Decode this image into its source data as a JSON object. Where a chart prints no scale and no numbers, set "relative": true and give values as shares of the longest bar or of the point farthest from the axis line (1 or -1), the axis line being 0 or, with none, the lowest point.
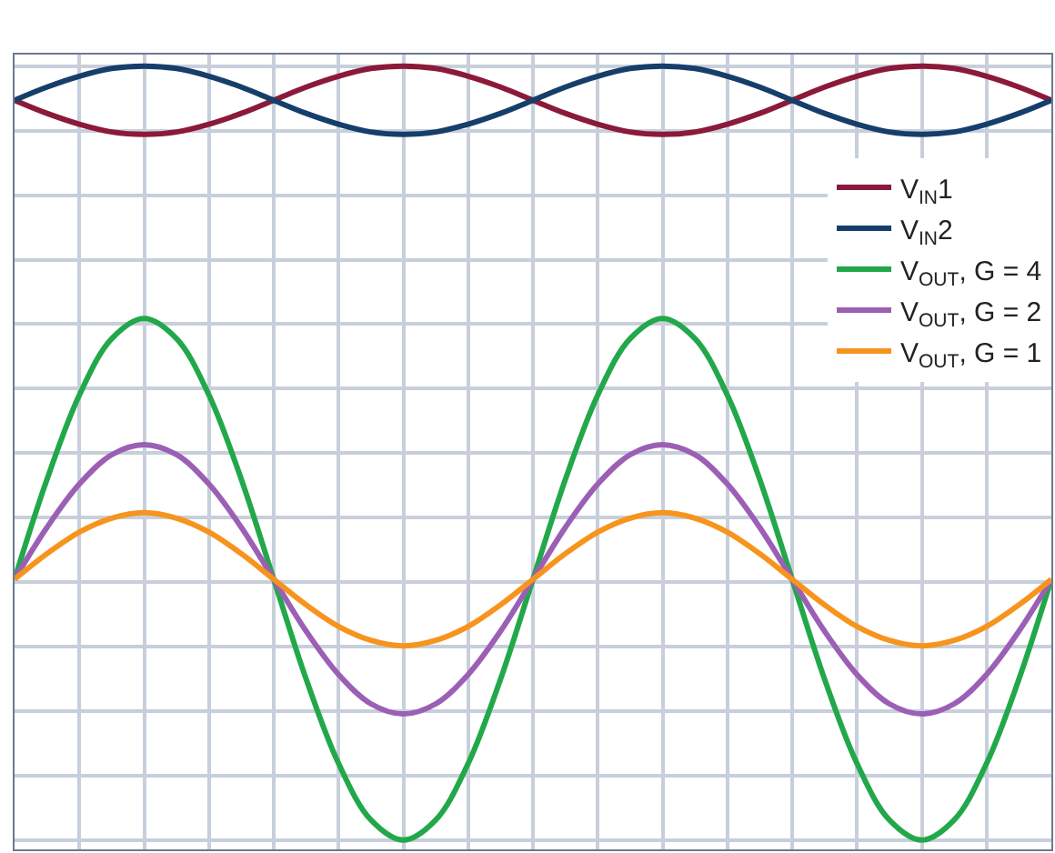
{
  "chart_data": {
    "type": "line",
    "relative": true,
    "grid": true,
    "legend": "top right",
    "marker": "none",
    "line_style": "solid",
    "categories": [
      null,
      null,
      null,
      null,
      null,
      null,
      null,
      null,
      null,
      null,
      null,
      null,
      null,
      null,
      null,
      null,
      null,
      null,
      null,
      null,
      null,
      null,
      null,
      null,
      null,
      null,
      null,
      null,
      null,
      null,
      null,
      null,
      null
    ],
    "series": [
      {
        "name": "V$_{IN}$1",
        "color": "#8b1a3a",
        "values": [
          0.956,
          0.939,
          0.925,
          0.915,
          0.912,
          0.915,
          0.925,
          0.939,
          0.956,
          0.973,
          0.987,
          0.997,
          1,
          0.997,
          0.987,
          0.973,
          0.956,
          0.939,
          0.925,
          0.915,
          0.912,
          0.915,
          0.925,
          0.939,
          0.956,
          0.973,
          0.987,
          0.997,
          1,
          0.997,
          0.987,
          0.973,
          0.956
        ]
      },
      {
        "name": "V$_{IN}$2",
        "color": "#163e6a",
        "values": [
          0.956,
          0.973,
          0.987,
          0.997,
          1,
          0.997,
          0.987,
          0.973,
          0.956,
          0.939,
          0.925,
          0.915,
          0.912,
          0.915,
          0.925,
          0.939,
          0.956,
          0.973,
          0.987,
          0.997,
          1,
          0.997,
          0.987,
          0.973,
          0.956,
          0.939,
          0.925,
          0.915,
          0.912,
          0.915,
          0.925,
          0.939,
          0.956
        ]
      },
      {
        "name": "V$_{OUT}$, G = 4",
        "color": "#22a84a",
        "values": [
          0.337,
          0.466,
          0.575,
          0.648,
          0.674,
          0.648,
          0.575,
          0.466,
          0.337,
          0.208,
          0.099,
          0.026,
          0,
          0.026,
          0.099,
          0.208,
          0.337,
          0.466,
          0.575,
          0.648,
          0.674,
          0.648,
          0.575,
          0.466,
          0.337,
          0.208,
          0.099,
          0.026,
          0,
          0.026,
          0.099,
          0.208,
          0.337
        ]
      },
      {
        "name": "V$_{OUT}$, G = 2",
        "color": "#9b5fb5",
        "values": [
          0.337,
          0.404,
          0.46,
          0.498,
          0.511,
          0.498,
          0.46,
          0.404,
          0.337,
          0.27,
          0.214,
          0.176,
          0.163,
          0.176,
          0.214,
          0.27,
          0.337,
          0.404,
          0.46,
          0.498,
          0.511,
          0.498,
          0.46,
          0.404,
          0.337,
          0.27,
          0.214,
          0.176,
          0.163,
          0.176,
          0.214,
          0.27,
          0.337
        ]
      },
      {
        "name": "V$_{OUT}$, G = 1",
        "color": "#f7941d",
        "values": [
          0.337,
          0.37,
          0.398,
          0.416,
          0.423,
          0.416,
          0.398,
          0.37,
          0.337,
          0.304,
          0.276,
          0.258,
          0.251,
          0.258,
          0.276,
          0.304,
          0.337,
          0.37,
          0.398,
          0.416,
          0.423,
          0.416,
          0.398,
          0.37,
          0.337,
          0.304,
          0.276,
          0.258,
          0.251,
          0.258,
          0.276,
          0.304,
          0.337
        ]
      }
    ]
  }
}
